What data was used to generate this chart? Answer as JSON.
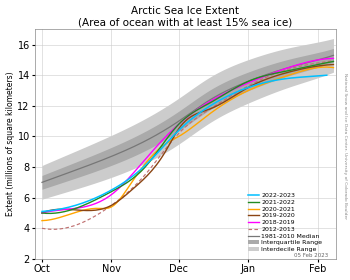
{
  "title_line1": "Arctic Sea Ice Extent",
  "title_line2": "(Area of ocean with at least 15% sea ice)",
  "ylabel": "Extent (millions of square kilometers)",
  "date_label": "05 Feb 2023",
  "side_label": "National Snow and Ice Data Center, University of Colorado Boulder",
  "xlim": [
    -3,
    131
  ],
  "ylim": [
    2,
    17.0
  ],
  "yticks": [
    2,
    4,
    6,
    8,
    10,
    12,
    14,
    16
  ],
  "xtick_positions": [
    0,
    31,
    61,
    92,
    123
  ],
  "xtick_labels": [
    "Oct",
    "Nov",
    "Dec",
    "Jan",
    "Feb"
  ],
  "line_colors": {
    "2022-2023": "#00BFFF",
    "2021-2022": "#228B22",
    "2020-2021": "#FFA500",
    "2019-2020": "#8B4513",
    "2018-2019": "#FF00FF",
    "2012-2013": "#C07070"
  },
  "median_color": "#777777",
  "iqr_color": "#AAAAAA",
  "idr_color": "#CCCCCC",
  "background": "#FFFFFF"
}
